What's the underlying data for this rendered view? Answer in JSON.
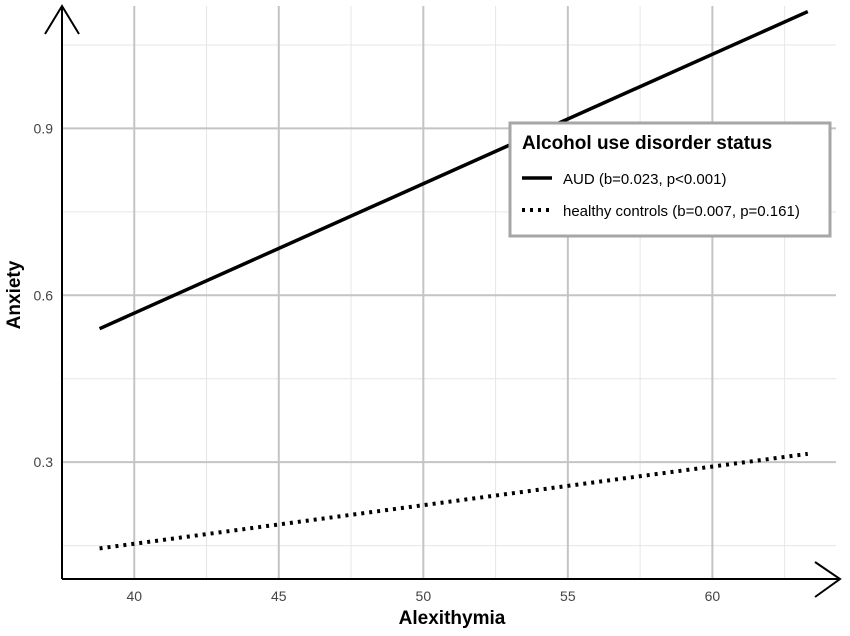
{
  "chart_data": {
    "type": "line",
    "xlabel": "Alexithymia",
    "ylabel": "Anxiety",
    "xlim": [
      37.5,
      64.0
    ],
    "ylim": [
      0.09,
      1.12
    ],
    "x_ticks": [
      40,
      45,
      50,
      55,
      60
    ],
    "x_tick_labels": [
      "40",
      "45",
      "50",
      "55",
      "60"
    ],
    "y_ticks": [
      0.3,
      0.6,
      0.9
    ],
    "y_tick_labels": [
      "0.3",
      "0.6",
      "0.9"
    ],
    "x_minor_ticks": [
      42.5,
      47.5,
      52.5,
      57.5,
      62.5
    ],
    "y_minor_ticks": [
      0.15,
      0.45,
      0.75,
      1.05
    ],
    "grid": true,
    "legend": {
      "title": "Alcohol use disorder status",
      "position": "top-right"
    },
    "series": [
      {
        "name": "AUD (b=0.023, p<0.001)",
        "style": "solid",
        "color": "#000000",
        "x": [
          38.8,
          63.3
        ],
        "y": [
          0.54,
          1.11
        ]
      },
      {
        "name": "healthy controls (b=0.007, p=0.161)",
        "style": "dotted",
        "color": "#000000",
        "x": [
          38.8,
          63.3
        ],
        "y": [
          0.145,
          0.315
        ]
      }
    ]
  }
}
